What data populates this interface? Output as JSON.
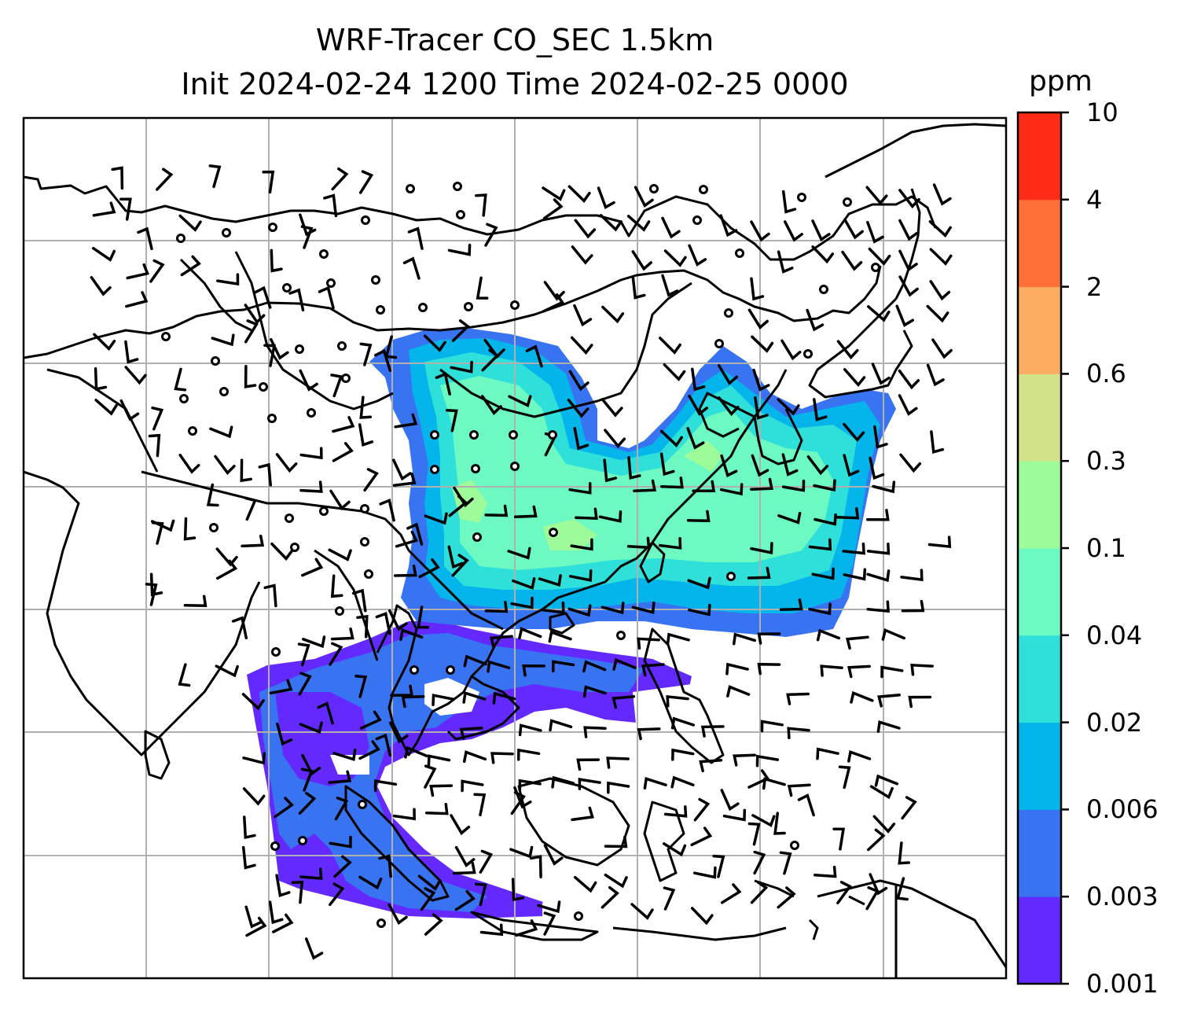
{
  "title": {
    "line1": "WRF-Tracer CO_SEC 1.5km",
    "line2": "Init 2024-02-24 1200 Time 2024-02-25 0000"
  },
  "colorbar": {
    "unit": "ppm",
    "levels": [
      "0.001",
      "0.003",
      "0.006",
      "0.02",
      "0.04",
      "0.1",
      "0.3",
      "0.6",
      "2",
      "4",
      "10"
    ],
    "colors": [
      "#6329ff",
      "#3873f2",
      "#03b5ea",
      "#2ee0d9",
      "#6dfac2",
      "#9dfb99",
      "#d1e388",
      "#fcad62",
      "#ff7039",
      "#ff2b17"
    ]
  },
  "map": {
    "coastline_color": "#000000",
    "gridline_color": "#b0b0b0",
    "wind_barbs": "black"
  }
}
